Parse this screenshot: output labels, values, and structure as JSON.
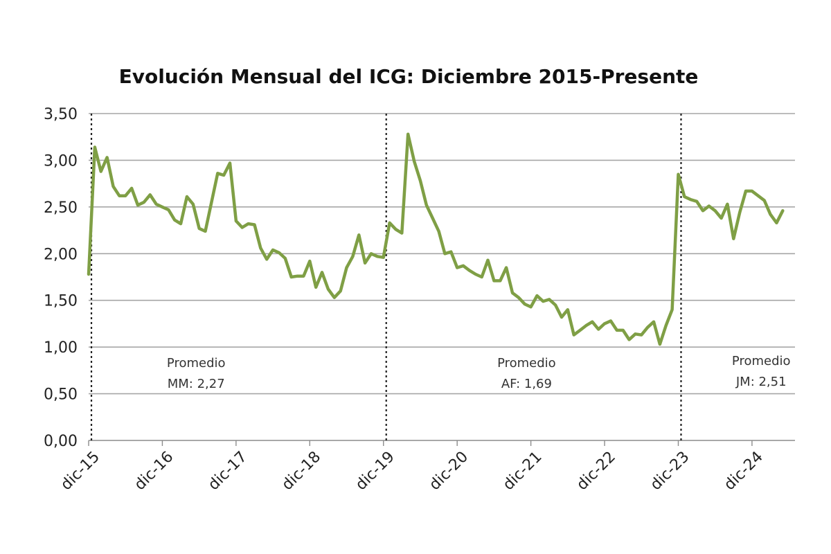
{
  "chart_data": {
    "type": "line",
    "title": "Evolución Mensual del ICG: Diciembre 2015-Presente",
    "xlabel": "",
    "ylabel": "",
    "ylim": [
      0,
      3.5
    ],
    "xlim": [
      0,
      115
    ],
    "grid": true,
    "y_ticks": [
      "0,00",
      "0,50",
      "1,00",
      "1,50",
      "2,00",
      "2,50",
      "3,00",
      "3,50"
    ],
    "x_ticks": [
      {
        "label": "dic-15",
        "x": 0
      },
      {
        "label": "dic-16",
        "x": 12
      },
      {
        "label": "dic-17",
        "x": 24
      },
      {
        "label": "dic-18",
        "x": 36
      },
      {
        "label": "dic-19",
        "x": 48
      },
      {
        "label": "dic-20",
        "x": 60
      },
      {
        "label": "dic-21",
        "x": 72
      },
      {
        "label": "dic-22",
        "x": 84
      },
      {
        "label": "dic-23",
        "x": 96
      },
      {
        "label": "dic-24",
        "x": 108
      }
    ],
    "series": [
      {
        "color": "#7f9f45",
        "points": [
          [
            0,
            1.78
          ],
          [
            1,
            3.14
          ],
          [
            2,
            2.88
          ],
          [
            3,
            3.03
          ],
          [
            4,
            2.72
          ],
          [
            5,
            2.62
          ],
          [
            6,
            2.62
          ],
          [
            7,
            2.7
          ],
          [
            8,
            2.52
          ],
          [
            9,
            2.55
          ],
          [
            10,
            2.63
          ],
          [
            11,
            2.53
          ],
          [
            12,
            2.5
          ],
          [
            13,
            2.47
          ],
          [
            14,
            2.36
          ],
          [
            15,
            2.32
          ],
          [
            16,
            2.61
          ],
          [
            17,
            2.53
          ],
          [
            18,
            2.27
          ],
          [
            19,
            2.24
          ],
          [
            20,
            2.55
          ],
          [
            21,
            2.86
          ],
          [
            22,
            2.84
          ],
          [
            23,
            2.97
          ],
          [
            24,
            2.35
          ],
          [
            25,
            2.28
          ],
          [
            26,
            2.32
          ],
          [
            27,
            2.31
          ],
          [
            28,
            2.06
          ],
          [
            29,
            1.94
          ],
          [
            30,
            2.04
          ],
          [
            31,
            2.01
          ],
          [
            32,
            1.95
          ],
          [
            33,
            1.75
          ],
          [
            34,
            1.76
          ],
          [
            35,
            1.76
          ],
          [
            36,
            1.92
          ],
          [
            37,
            1.64
          ],
          [
            38,
            1.8
          ],
          [
            39,
            1.62
          ],
          [
            40,
            1.53
          ],
          [
            41,
            1.6
          ],
          [
            42,
            1.85
          ],
          [
            43,
            1.97
          ],
          [
            44,
            2.2
          ],
          [
            45,
            1.9
          ],
          [
            46,
            2.0
          ],
          [
            47,
            1.97
          ],
          [
            48,
            1.96
          ],
          [
            49,
            2.33
          ],
          [
            50,
            2.26
          ],
          [
            51,
            2.22
          ],
          [
            52,
            3.28
          ],
          [
            53,
            2.99
          ],
          [
            54,
            2.78
          ],
          [
            55,
            2.52
          ],
          [
            56,
            2.38
          ],
          [
            57,
            2.24
          ],
          [
            58,
            2.0
          ],
          [
            59,
            2.02
          ],
          [
            60,
            1.85
          ],
          [
            61,
            1.87
          ],
          [
            62,
            1.82
          ],
          [
            63,
            1.78
          ],
          [
            64,
            1.75
          ],
          [
            65,
            1.93
          ],
          [
            66,
            1.71
          ],
          [
            67,
            1.71
          ],
          [
            68,
            1.85
          ],
          [
            69,
            1.58
          ],
          [
            70,
            1.53
          ],
          [
            71,
            1.46
          ],
          [
            72,
            1.43
          ],
          [
            73,
            1.55
          ],
          [
            74,
            1.49
          ],
          [
            75,
            1.51
          ],
          [
            76,
            1.45
          ],
          [
            77,
            1.32
          ],
          [
            78,
            1.4
          ],
          [
            79,
            1.13
          ],
          [
            80,
            1.18
          ],
          [
            81,
            1.23
          ],
          [
            82,
            1.27
          ],
          [
            83,
            1.19
          ],
          [
            84,
            1.25
          ],
          [
            85,
            1.28
          ],
          [
            86,
            1.18
          ],
          [
            87,
            1.18
          ],
          [
            88,
            1.08
          ],
          [
            89,
            1.14
          ],
          [
            90,
            1.13
          ],
          [
            91,
            1.21
          ],
          [
            92,
            1.27
          ],
          [
            93,
            1.03
          ],
          [
            94,
            1.23
          ],
          [
            95,
            1.4
          ],
          [
            96,
            2.85
          ],
          [
            97,
            2.61
          ],
          [
            98,
            2.58
          ],
          [
            99,
            2.56
          ],
          [
            100,
            2.46
          ],
          [
            101,
            2.51
          ],
          [
            102,
            2.46
          ],
          [
            103,
            2.38
          ],
          [
            104,
            2.53
          ],
          [
            105,
            2.16
          ],
          [
            106,
            2.44
          ],
          [
            107,
            2.67
          ],
          [
            108,
            2.67
          ],
          [
            109,
            2.62
          ],
          [
            110,
            2.57
          ],
          [
            111,
            2.42
          ],
          [
            112,
            2.33
          ],
          [
            113,
            2.46
          ]
        ]
      }
    ],
    "dividers": [
      0,
      48,
      96
    ],
    "annotations": [
      {
        "line1": "Promedio",
        "line2": "MM: 2,27",
        "x": 17.5,
        "y": 0.98
      },
      {
        "line1": "Promedio",
        "line2": "AF: 1,69",
        "x": 71.3,
        "y": 0.98
      },
      {
        "line1": "Promedio",
        "line2": "JM: 2,51",
        "x": 109.5,
        "y": 1.0
      }
    ]
  }
}
